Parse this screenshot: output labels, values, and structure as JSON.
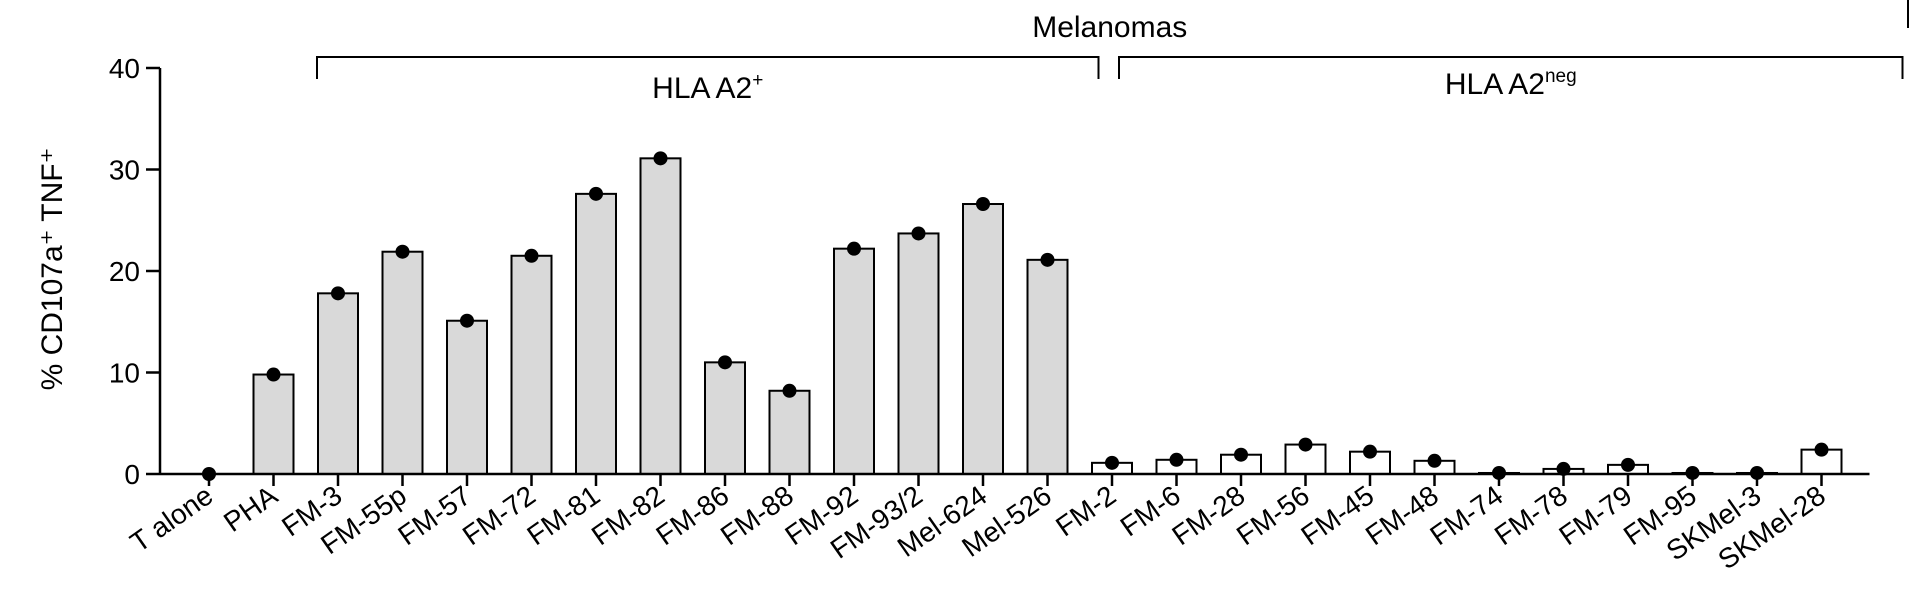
{
  "chart_data": {
    "type": "bar",
    "title": "",
    "ylabel": "% CD107a⁺ TNF⁺",
    "ylim": [
      0,
      40
    ],
    "yticks": [
      0,
      10,
      20,
      30,
      40
    ],
    "grid": false,
    "categories": [
      "T alone",
      "PHA",
      "FM-3",
      "FM-55p",
      "FM-57",
      "FM-72",
      "FM-81",
      "FM-82",
      "FM-86",
      "FM-88",
      "FM-92",
      "FM-93/2",
      "Mel-624",
      "Mel-526",
      "FM-2",
      "FM-6",
      "FM-28",
      "FM-56",
      "FM-45",
      "FM-48",
      "FM-74",
      "FM-78",
      "FM-79",
      "FM-95",
      "SKMel-3",
      "SKMel-28"
    ],
    "values": [
      0,
      9.8,
      17.8,
      21.9,
      15.1,
      21.5,
      27.6,
      31.1,
      11.0,
      8.2,
      22.2,
      23.7,
      26.6,
      21.1,
      1.1,
      1.4,
      1.9,
      2.9,
      2.2,
      1.3,
      0.1,
      0.5,
      0.9,
      0.1,
      0.1,
      2.4
    ],
    "bar_colors": [
      "#ffffff",
      "#d9d9d9",
      "#d9d9d9",
      "#d9d9d9",
      "#d9d9d9",
      "#d9d9d9",
      "#d9d9d9",
      "#d9d9d9",
      "#d9d9d9",
      "#d9d9d9",
      "#d9d9d9",
      "#d9d9d9",
      "#d9d9d9",
      "#d9d9d9",
      "#ffffff",
      "#ffffff",
      "#ffffff",
      "#ffffff",
      "#ffffff",
      "#ffffff",
      "#ffffff",
      "#ffffff",
      "#ffffff",
      "#ffffff",
      "#ffffff",
      "#ffffff"
    ],
    "groups": {
      "outer": {
        "label": "Melanomas",
        "from": "FM-3",
        "to": "SKMel-28"
      },
      "a2pos": {
        "label": "HLA A2",
        "sup": "+",
        "from": "FM-3",
        "to": "Mel-526"
      },
      "a2neg": {
        "label": "HLA A2",
        "sup": "neg",
        "from": "FM-2",
        "to": "SKMel-28"
      }
    }
  }
}
